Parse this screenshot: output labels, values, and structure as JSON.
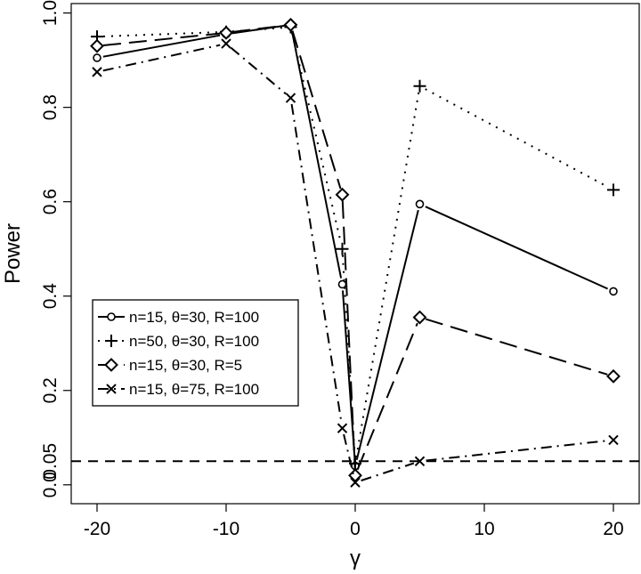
{
  "chart_data": {
    "type": "line",
    "xlabel": "γ",
    "ylabel": "Power",
    "xlim": [
      -22,
      22
    ],
    "ylim": [
      -0.04,
      1.02
    ],
    "x": [
      -20,
      -10,
      -5,
      -1,
      0,
      5,
      20
    ],
    "x_ticks": [
      -20,
      -10,
      0,
      10,
      20
    ],
    "y_ticks": [
      0.0,
      0.2,
      0.4,
      0.6,
      0.8,
      1.0
    ],
    "x_tick_labels": [
      "-20",
      "-10",
      "0",
      "10",
      "20"
    ],
    "y_tick_labels": [
      "0.0",
      "0.2",
      "0.4",
      "0.6",
      "0.8",
      "1.0"
    ],
    "reference_line": {
      "y": 0.05,
      "label": "0.05"
    },
    "legend_position": "left-center",
    "series": [
      {
        "name": "n=15, θ=30, R=100",
        "values": [
          0.905,
          0.955,
          0.975,
          0.425,
          0.04,
          0.595,
          0.41
        ],
        "marker": "circle",
        "dash": "solid"
      },
      {
        "name": "n=50, θ=30, R=100",
        "values": [
          0.95,
          0.96,
          0.97,
          0.5,
          0.045,
          0.845,
          0.625
        ],
        "marker": "plus",
        "dash": "dotted"
      },
      {
        "name": "n=15, θ=30, R=5",
        "values": [
          0.93,
          0.958,
          0.975,
          0.615,
          0.02,
          0.355,
          0.23
        ],
        "marker": "diamond",
        "dash": "longdash"
      },
      {
        "name": "n=15, θ=75, R=100",
        "values": [
          0.875,
          0.935,
          0.82,
          0.12,
          0.005,
          0.05,
          0.095
        ],
        "marker": "cross",
        "dash": "dotdash"
      }
    ]
  }
}
